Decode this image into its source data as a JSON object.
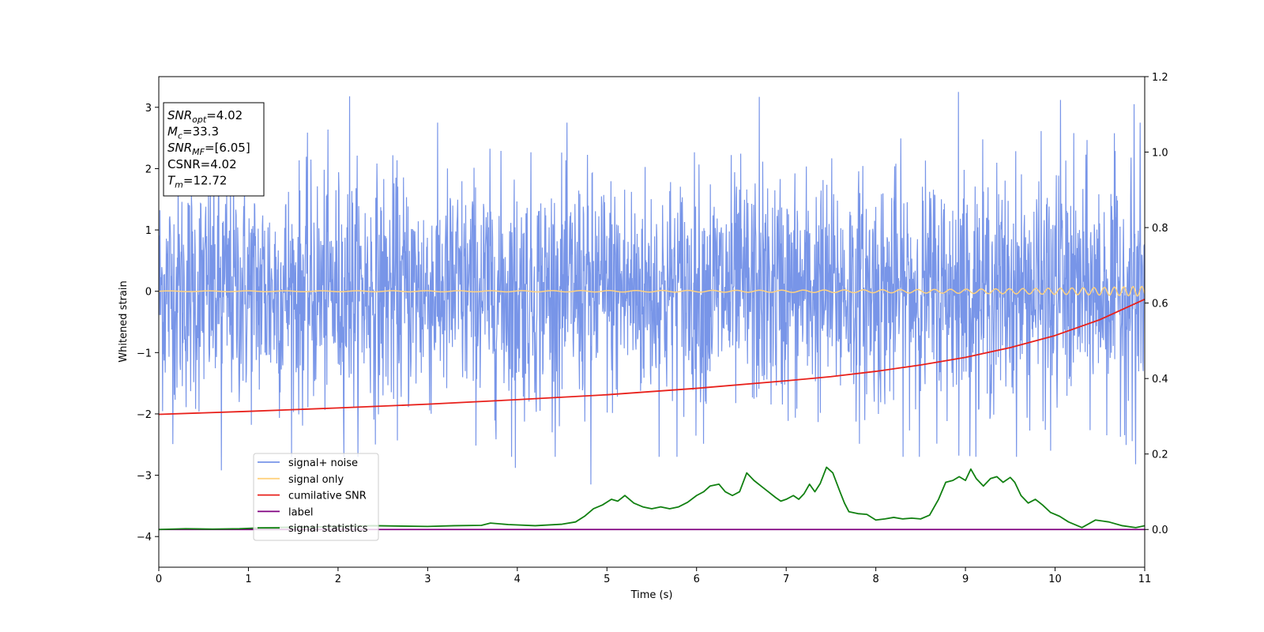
{
  "chart_data": {
    "type": "line",
    "xlabel": "Time (s)",
    "ylabel": "Whitened strain",
    "xlim": [
      0,
      11
    ],
    "ylim": [
      -4.5,
      3.5
    ],
    "y2lim": [
      -0.1,
      1.2
    ],
    "x_ticks": [
      0,
      1,
      2,
      3,
      4,
      5,
      6,
      7,
      8,
      9,
      10,
      11
    ],
    "y_ticks": [
      -4,
      -3,
      -2,
      -1,
      0,
      1,
      2,
      3
    ],
    "y_tick_labels": [
      "−4",
      "−3",
      "−2",
      "−1",
      "0",
      "1",
      "2",
      "3"
    ],
    "y2_ticks": [
      0.0,
      0.2,
      0.4,
      0.6,
      0.8,
      1.0,
      1.2
    ],
    "y2_tick_labels": [
      "0.0",
      "0.2",
      "0.4",
      "0.6",
      "0.8",
      "1.0",
      "1.2"
    ],
    "info_box": [
      {
        "main": "SNR",
        "sub": "opt",
        "rest": "=4.02"
      },
      {
        "main": "M",
        "sub": "c",
        "rest": "=33.3"
      },
      {
        "main": "SNR",
        "sub": "MF",
        "rest": "=[6.05]"
      },
      {
        "main": "CSNR",
        "sub": "",
        "rest": "=4.02"
      },
      {
        "main": "T",
        "sub": "m",
        "rest": "=12.72"
      }
    ],
    "legend": {
      "placement": "lower-left",
      "entries": [
        {
          "label": "signal+ noise",
          "color": "#7895e8"
        },
        {
          "label": "signal only",
          "color": "#ffd27f"
        },
        {
          "label": "cumilative SNR",
          "color": "#e8211c"
        },
        {
          "label": "label",
          "color": "#800080"
        },
        {
          "label": "signal statistics",
          "color": "#118011"
        }
      ]
    },
    "series": [
      {
        "name": "signal+ noise",
        "axis": "left",
        "color": "#7895e8",
        "kind": "noise",
        "x_range": [
          0,
          11
        ],
        "mean": 0.0,
        "std": 0.95,
        "min": -3.3,
        "max": 3.25,
        "notable_peaks": [
          [
            2.13,
            3.18
          ],
          [
            6.7,
            3.17
          ],
          [
            8.92,
            3.25
          ],
          [
            10.06,
            3.12
          ],
          [
            10.88,
            3.05
          ],
          [
            0.7,
            -2.92
          ],
          [
            4.82,
            -3.15
          ],
          [
            3.98,
            -2.88
          ],
          [
            10.9,
            -2.82
          ],
          [
            9.95,
            -2.6
          ]
        ]
      },
      {
        "name": "signal only",
        "axis": "left",
        "color": "#ffd27f",
        "kind": "chirp",
        "x": [
          0,
          2,
          4,
          6,
          7,
          8,
          9,
          10,
          10.5,
          11
        ],
        "amplitude": [
          0.006,
          0.008,
          0.01,
          0.014,
          0.018,
          0.024,
          0.034,
          0.05,
          0.062,
          0.08
        ],
        "frequency_hz": [
          2.2,
          2.5,
          2.9,
          3.6,
          4.1,
          4.8,
          5.8,
          7.4,
          8.6,
          10.5
        ]
      },
      {
        "name": "cumilative SNR",
        "axis": "right",
        "color": "#e8211c",
        "x": [
          0,
          1,
          2,
          3,
          4,
          5,
          6,
          7,
          7.5,
          8,
          8.5,
          9,
          9.5,
          10,
          10.5,
          11
        ],
        "y": [
          0.305,
          0.313,
          0.322,
          0.332,
          0.344,
          0.357,
          0.374,
          0.394,
          0.405,
          0.419,
          0.436,
          0.456,
          0.482,
          0.514,
          0.556,
          0.61
        ]
      },
      {
        "name": "label",
        "axis": "right",
        "color": "#800080",
        "x": [
          0,
          11
        ],
        "y": [
          0.0,
          0.0
        ]
      },
      {
        "name": "signal statistics",
        "axis": "right",
        "color": "#118011",
        "x": [
          0,
          0.3,
          0.6,
          0.9,
          1.2,
          1.5,
          1.8,
          2.1,
          2.4,
          2.7,
          3.0,
          3.3,
          3.6,
          3.7,
          3.9,
          4.2,
          4.5,
          4.65,
          4.75,
          4.85,
          4.95,
          5.05,
          5.12,
          5.2,
          5.3,
          5.4,
          5.5,
          5.6,
          5.7,
          5.8,
          5.9,
          6.0,
          6.08,
          6.15,
          6.25,
          6.32,
          6.4,
          6.48,
          6.56,
          6.64,
          6.72,
          6.8,
          6.88,
          6.94,
          7.0,
          7.08,
          7.14,
          7.2,
          7.26,
          7.32,
          7.38,
          7.45,
          7.52,
          7.6,
          7.65,
          7.7,
          7.8,
          7.9,
          8.0,
          8.1,
          8.2,
          8.3,
          8.4,
          8.5,
          8.6,
          8.7,
          8.78,
          8.86,
          8.93,
          9.0,
          9.06,
          9.12,
          9.2,
          9.28,
          9.35,
          9.42,
          9.5,
          9.55,
          9.62,
          9.7,
          9.78,
          9.86,
          9.95,
          10.05,
          10.15,
          10.3,
          10.45,
          10.6,
          10.75,
          10.9,
          11.0
        ],
        "y": [
          0.0,
          0.002,
          0.001,
          0.002,
          0.005,
          0.006,
          0.007,
          0.009,
          0.01,
          0.009,
          0.008,
          0.01,
          0.011,
          0.017,
          0.013,
          0.01,
          0.014,
          0.02,
          0.035,
          0.055,
          0.065,
          0.08,
          0.075,
          0.09,
          0.07,
          0.06,
          0.055,
          0.06,
          0.055,
          0.06,
          0.072,
          0.09,
          0.1,
          0.115,
          0.12,
          0.1,
          0.09,
          0.1,
          0.15,
          0.13,
          0.115,
          0.1,
          0.085,
          0.075,
          0.08,
          0.09,
          0.08,
          0.095,
          0.12,
          0.1,
          0.122,
          0.165,
          0.15,
          0.1,
          0.07,
          0.047,
          0.042,
          0.04,
          0.025,
          0.028,
          0.032,
          0.028,
          0.03,
          0.028,
          0.038,
          0.08,
          0.125,
          0.13,
          0.14,
          0.13,
          0.16,
          0.135,
          0.115,
          0.135,
          0.14,
          0.125,
          0.138,
          0.125,
          0.09,
          0.07,
          0.08,
          0.065,
          0.045,
          0.035,
          0.02,
          0.005,
          0.025,
          0.02,
          0.01,
          0.005,
          0.01
        ]
      }
    ]
  }
}
